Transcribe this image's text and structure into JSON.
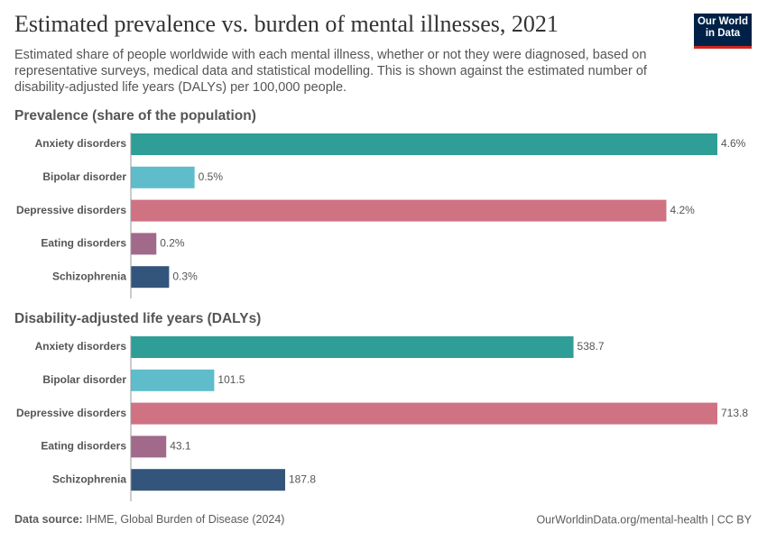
{
  "header": {
    "title": "Estimated prevalence vs. burden of mental illnesses, 2021",
    "subtitle": "Estimated share of people worldwide with each mental illness, whether or not they were diagnosed, based on representative surveys, medical data and statistical modelling. This is shown against the estimated number of disability-adjusted life years (DALYs) per 100,000 people.",
    "logo": "Our World in Data"
  },
  "chart_data": [
    {
      "type": "bar",
      "orientation": "horizontal",
      "title": "Prevalence (share of the population)",
      "categories": [
        "Anxiety disorders",
        "Bipolar disorder",
        "Depressive disorders",
        "Eating disorders",
        "Schizophrenia"
      ],
      "values": [
        4.6,
        0.5,
        4.2,
        0.2,
        0.3
      ],
      "value_labels": [
        "4.6%",
        "0.5%",
        "4.2%",
        "0.2%",
        "0.3%"
      ],
      "colors": [
        "#2e9e96",
        "#5fbccb",
        "#cf7282",
        "#a1698a",
        "#33557c"
      ]
    },
    {
      "type": "bar",
      "orientation": "horizontal",
      "title": "Disability-adjusted life years (DALYs)",
      "categories": [
        "Anxiety disorders",
        "Bipolar disorder",
        "Depressive disorders",
        "Eating disorders",
        "Schizophrenia"
      ],
      "values": [
        538.7,
        101.5,
        713.8,
        43.1,
        187.8
      ],
      "colors": [
        "#2e9e96",
        "#5fbccb",
        "#cf7282",
        "#a1698a",
        "#33557c"
      ]
    }
  ],
  "footer": {
    "source_label": "Data source:",
    "source": "IHME, Global Burden of Disease (2024)",
    "url": "OurWorldinData.org/mental-health | CC BY"
  }
}
